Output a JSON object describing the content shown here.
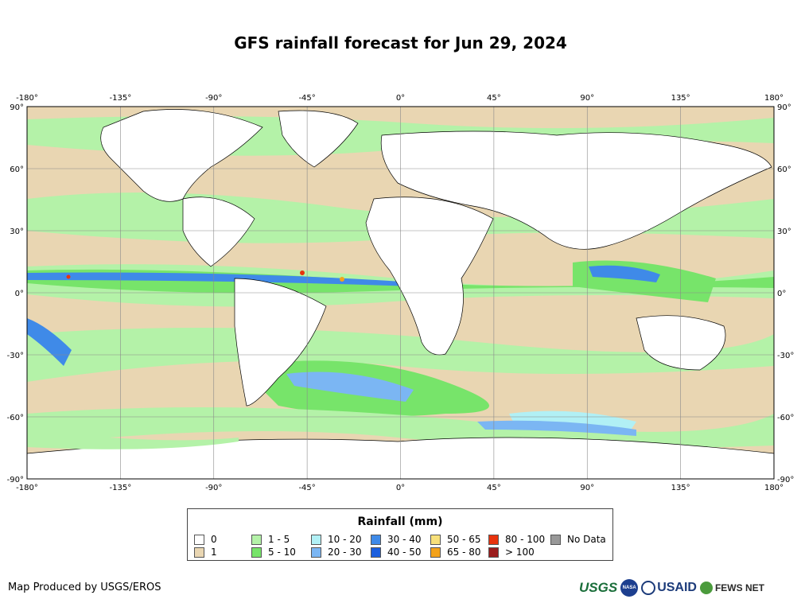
{
  "title": "GFS rainfall forecast for Jun 29, 2024",
  "map": {
    "lon_ticks": [
      "-180°",
      "-135°",
      "-90°",
      "-45°",
      "0°",
      "45°",
      "90°",
      "135°",
      "180°"
    ],
    "lat_ticks": [
      "90°",
      "60°",
      "30°",
      "0°",
      "-30°",
      "-60°",
      "-90°"
    ],
    "land_color": "#ffffff",
    "ocean_rain_colors": [
      "#e9d6b2",
      "#b4f2a8",
      "#77e46a",
      "#b1f0f5",
      "#7bb6f3",
      "#3f8ae8",
      "#1a5ede"
    ]
  },
  "legend": {
    "title": "Rainfall (mm)",
    "items": [
      {
        "label": "0",
        "color": "#ffffff"
      },
      {
        "label": "1",
        "color": "#e9d6b2"
      },
      {
        "label": "1 - 5",
        "color": "#b4f2a8"
      },
      {
        "label": "5 - 10",
        "color": "#77e46a"
      },
      {
        "label": "10 - 20",
        "color": "#b1f0f5"
      },
      {
        "label": "20 - 30",
        "color": "#7bb6f3"
      },
      {
        "label": "30 - 40",
        "color": "#3f8ae8"
      },
      {
        "label": "40 - 50",
        "color": "#1a5ede"
      },
      {
        "label": "50 - 65",
        "color": "#f7e07a"
      },
      {
        "label": "65 - 80",
        "color": "#f3a21a"
      },
      {
        "label": "80 - 100",
        "color": "#e8330d"
      },
      {
        "label": "> 100",
        "color": "#9b1c1c"
      },
      {
        "label": "No Data",
        "color": "#999999"
      }
    ]
  },
  "credit": "Map Produced by USGS/EROS",
  "logos": {
    "usgs": "USGS",
    "nasa": "NASA",
    "usaid": "USAID",
    "fews": "FEWS NET"
  }
}
